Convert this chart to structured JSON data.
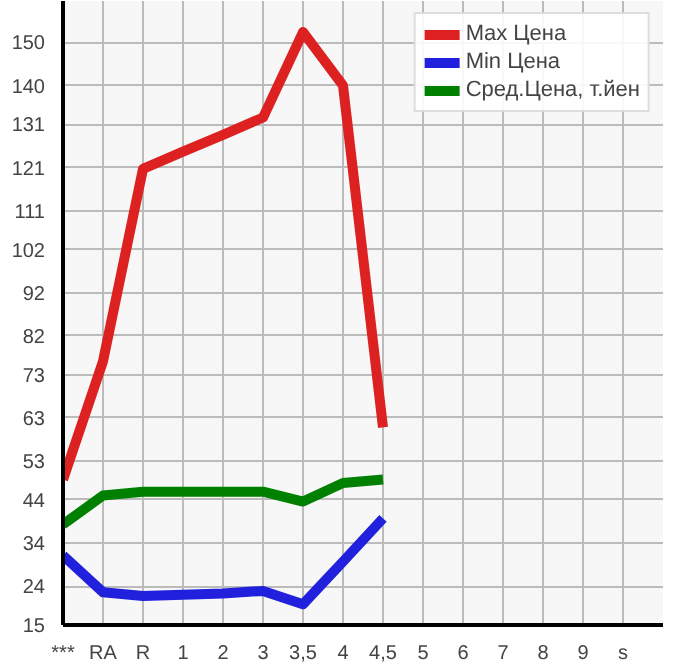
{
  "chart_data": {
    "type": "line",
    "categories": [
      "***",
      "RA",
      "R",
      "1",
      "2",
      "3",
      "3,5",
      "4",
      "4,5",
      "5",
      "6",
      "7",
      "8",
      "9",
      "s"
    ],
    "series": [
      {
        "name": "Max Цена",
        "color": "#dd2020",
        "values": [
          48.7,
          76.1,
          120.7,
          124.7,
          128.6,
          132.6,
          152.4,
          140,
          60.8,
          null,
          null,
          null,
          null,
          null,
          null
        ]
      },
      {
        "name": "Min Цена",
        "color": "#2020dd",
        "values": [
          31.1,
          22.6,
          21.7,
          22,
          22.3,
          22.9,
          19.8,
          29.7,
          39.7,
          null,
          null,
          null,
          null,
          null,
          null
        ]
      },
      {
        "name": "Сред.Цена, т.йен",
        "color": "#008000",
        "values": [
          38.3,
          45,
          45.9,
          45.9,
          45.9,
          45.9,
          43.6,
          47.9,
          48.7,
          null,
          null,
          null,
          null,
          null,
          null
        ]
      }
    ],
    "ylim": [
      15,
      159.6
    ],
    "yticks": [
      15,
      24,
      34,
      44,
      53,
      63,
      73,
      82,
      92,
      102,
      111,
      121,
      131,
      140,
      150
    ],
    "grid": true,
    "legend": "top right",
    "marker": "none",
    "line_style": "solid"
  }
}
